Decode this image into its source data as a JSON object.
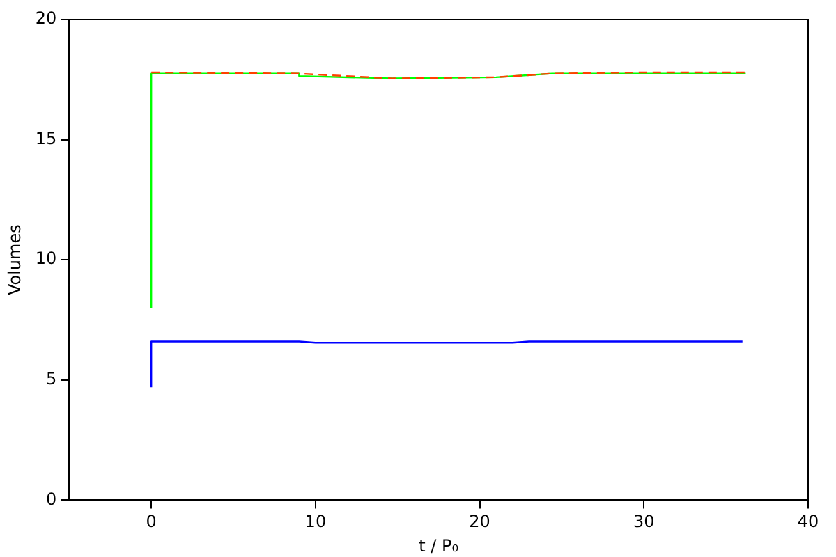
{
  "chart_data": {
    "type": "line",
    "xlabel": "t / P₀",
    "ylabel": "Volumes",
    "xlim": [
      -5,
      40
    ],
    "xticks": [
      0,
      10,
      20,
      30,
      40
    ],
    "ylim": [
      0,
      20
    ],
    "yticks": [
      0,
      5,
      10,
      15,
      20
    ],
    "grid": false,
    "legend": false,
    "marker": "none",
    "series": [
      {
        "color": "#00ff00",
        "line_style": "solid",
        "x": [
          0,
          0,
          9,
          9,
          14.7,
          21,
          24.4,
          36.2
        ],
        "values": [
          8,
          17.75,
          17.75,
          17.65,
          17.55,
          17.6,
          17.75,
          17.75
        ]
      },
      {
        "color": "#ff4000",
        "line_style": "dashed",
        "x": [
          0,
          9,
          14.7,
          21,
          24.4,
          30,
          36.2
        ],
        "values": [
          17.8,
          17.75,
          17.55,
          17.6,
          17.75,
          17.8,
          17.8
        ]
      },
      {
        "color": "#0000ff",
        "line_style": "solid",
        "x": [
          0,
          0,
          9,
          10,
          22,
          23,
          36
        ],
        "values": [
          4.7,
          6.6,
          6.6,
          6.55,
          6.55,
          6.6,
          6.6
        ]
      }
    ]
  }
}
